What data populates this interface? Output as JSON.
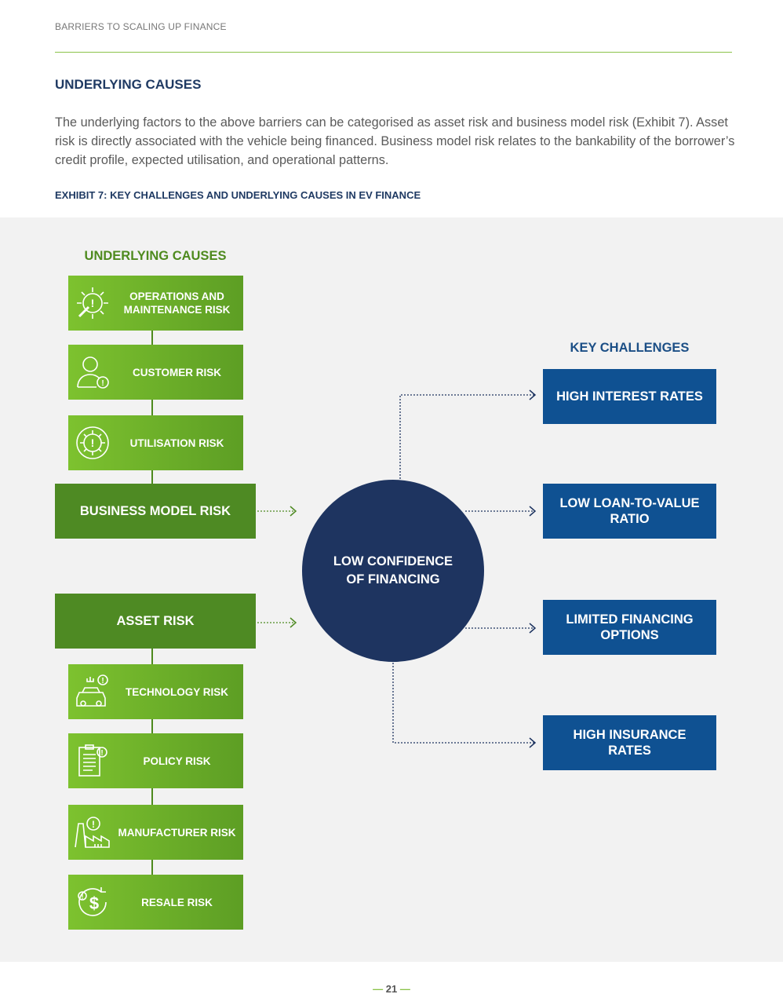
{
  "header": {
    "running_title": "BARRIERS TO SCALING UP FINANCE"
  },
  "section": {
    "title": "UNDERLYING CAUSES",
    "body": "The underlying factors to the above barriers can be categorised as asset risk and business model risk (Exhibit 7). Asset risk is directly associated with the vehicle being financed. Business model risk relates to the bankability of the borrower’s credit profile, expected utilisation, and operational patterns."
  },
  "exhibit": {
    "title": "EXHIBIT 7: KEY CHALLENGES AND UNDERLYING CAUSES IN EV FINANCE",
    "causes_heading": "UNDERLYING CAUSES",
    "challenges_heading": "KEY CHALLENGES",
    "business_model_causes": [
      {
        "label": "OPERATIONS AND MAINTENANCE RISK",
        "icon": "gear-wrench-warning-icon"
      },
      {
        "label": "CUSTOMER RISK",
        "icon": "person-warning-icon"
      },
      {
        "label": "UTILISATION RISK",
        "icon": "gear-cycle-warning-icon"
      }
    ],
    "business_model_risk": "BUSINESS MODEL RISK",
    "asset_risk": "ASSET RISK",
    "asset_causes": [
      {
        "label": "TECHNOLOGY RISK",
        "icon": "vehicle-charger-warning-icon"
      },
      {
        "label": "POLICY RISK",
        "icon": "clipboard-warning-icon"
      },
      {
        "label": "MANUFACTURER RISK",
        "icon": "factory-warning-icon"
      },
      {
        "label": "RESALE RISK",
        "icon": "dollar-cycle-warning-icon"
      }
    ],
    "center": "LOW CONFIDENCE OF FINANCING",
    "challenges": [
      "HIGH INTEREST RATES",
      "LOW LOAN-TO-VALUE RATIO",
      "LIMITED FINANCING OPTIONS",
      "HIGH INSURANCE RATES"
    ],
    "colors": {
      "green_dark": "#4e8a23",
      "green_light": "#7dc22f",
      "navy": "#1e3460",
      "blue": "#0f5192"
    }
  },
  "footer": {
    "page_number": "21"
  }
}
